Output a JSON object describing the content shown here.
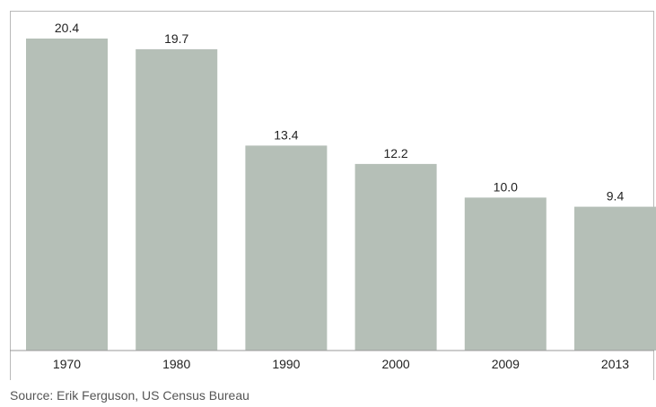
{
  "chart_data": {
    "type": "bar",
    "categories": [
      "1970",
      "1980",
      "1990",
      "2000",
      "2009",
      "2013"
    ],
    "values": [
      20.4,
      19.7,
      13.4,
      12.2,
      10.0,
      9.4
    ],
    "value_labels": [
      "20.4",
      "19.7",
      "13.4",
      "12.2",
      "10.0",
      "9.4"
    ],
    "ylim": [
      0,
      20.4
    ],
    "grid": false,
    "bar_color": "#b5bfb7"
  },
  "footer": {
    "source": "Source: Erik Ferguson, US Census Bureau"
  }
}
